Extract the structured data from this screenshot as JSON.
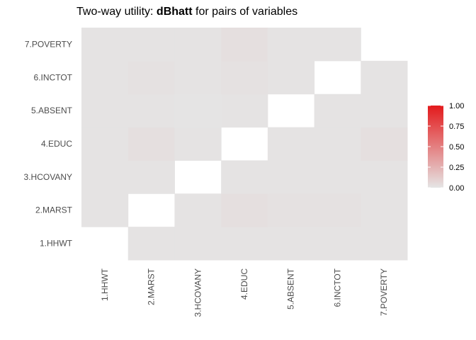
{
  "chart_data": {
    "type": "heatmap",
    "title_prefix": "Two-way utility: ",
    "title_bold": "dBhatt",
    "title_suffix": " for pairs of variables",
    "variables": [
      "1.HHWT",
      "2.MARST",
      "3.HCOVANY",
      "4.EDUC",
      "5.ABSENT",
      "6.INCTOT",
      "7.POVERTY"
    ],
    "matrix": [
      [
        null,
        0.01,
        0.01,
        0.01,
        0.01,
        0.01,
        0.01
      ],
      [
        0.01,
        null,
        0.01,
        0.03,
        0.02,
        0.02,
        0.01
      ],
      [
        0.01,
        0.01,
        null,
        0.01,
        0.01,
        0.01,
        0.01
      ],
      [
        0.01,
        0.03,
        0.01,
        null,
        0.01,
        0.01,
        0.03
      ],
      [
        0.01,
        0.01,
        0.005,
        0.01,
        null,
        0.01,
        0.01
      ],
      [
        0.01,
        0.02,
        0.01,
        0.02,
        0.01,
        null,
        0.01
      ],
      [
        0.01,
        0.01,
        0.01,
        0.03,
        0.01,
        0.01,
        null
      ]
    ],
    "legend": {
      "range": [
        0,
        1
      ],
      "ticks": [
        "0.00",
        "0.25",
        "0.50",
        "0.75",
        "1.00"
      ],
      "low_color": "#e5e5e5",
      "high_color": "#e31a1c"
    }
  }
}
